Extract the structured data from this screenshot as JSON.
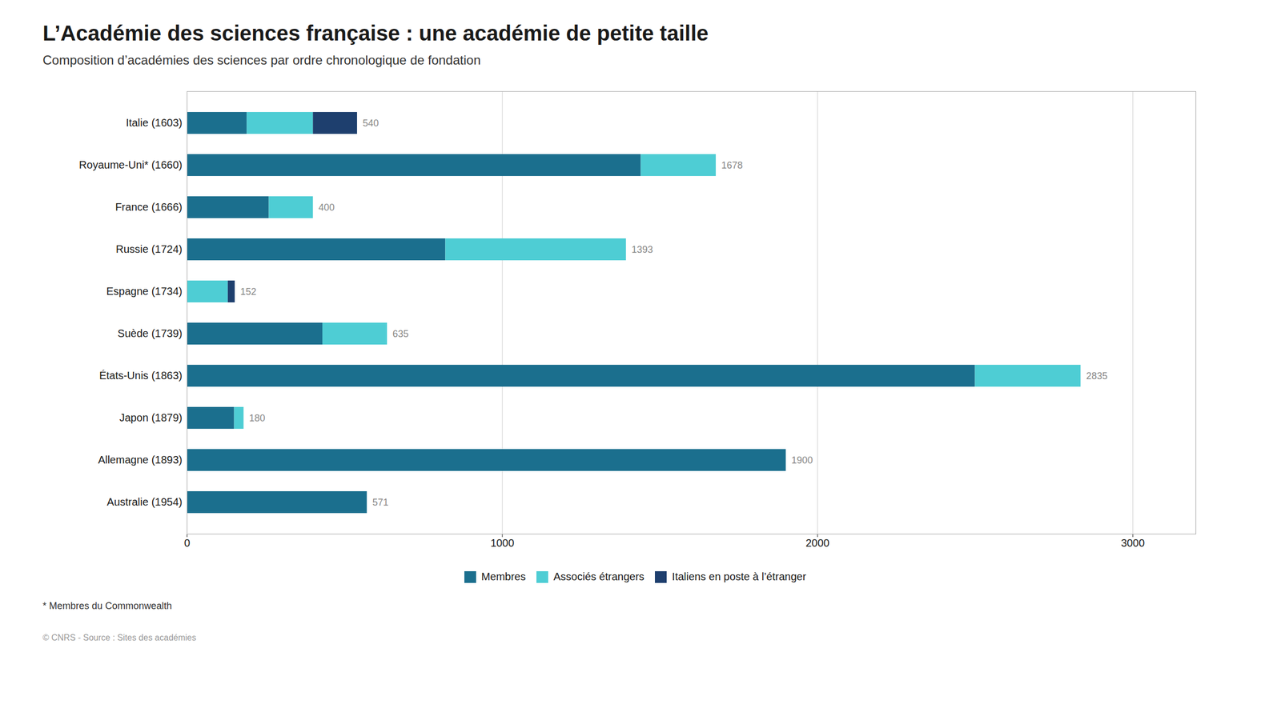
{
  "chart_data": {
    "type": "bar",
    "orientation": "horizontal",
    "stacked": true,
    "title": "L’Académie des sciences française : une académie de petite taille",
    "subtitle": "Composition d’académies des sciences par ordre chronologique de fondation",
    "footnote": "* Membres du Commonwealth",
    "source": "© CNRS - Source : Sites des académies",
    "categories": [
      "Italie (1603)",
      "Royaume-Uni* (1660)",
      "France (1666)",
      "Russie (1724)",
      "Espagne (1734)",
      "Suède (1739)",
      "États-Unis (1863)",
      "Japon (1879)",
      "Allemagne (1893)",
      "Australie (1954)"
    ],
    "series": [
      {
        "name": "Membres",
        "color": "#1b6f8e",
        "values": [
          190,
          1440,
          260,
          820,
          0,
          430,
          2500,
          150,
          1900,
          571
        ]
      },
      {
        "name": "Associés étrangers",
        "color": "#4ecdd4",
        "values": [
          210,
          238,
          140,
          573,
          130,
          205,
          335,
          30,
          0,
          0
        ]
      },
      {
        "name": "Italiens en poste à l’étranger",
        "color": "#1e3f6e",
        "values": [
          140,
          0,
          0,
          0,
          22,
          0,
          0,
          0,
          0,
          0
        ]
      }
    ],
    "totals": [
      540,
      1678,
      400,
      1393,
      152,
      635,
      2835,
      180,
      1900,
      571
    ],
    "xlim": [
      0,
      3200
    ],
    "xticks": [
      0,
      1000,
      2000,
      3000
    ],
    "grid": true,
    "legend": "bottom"
  }
}
